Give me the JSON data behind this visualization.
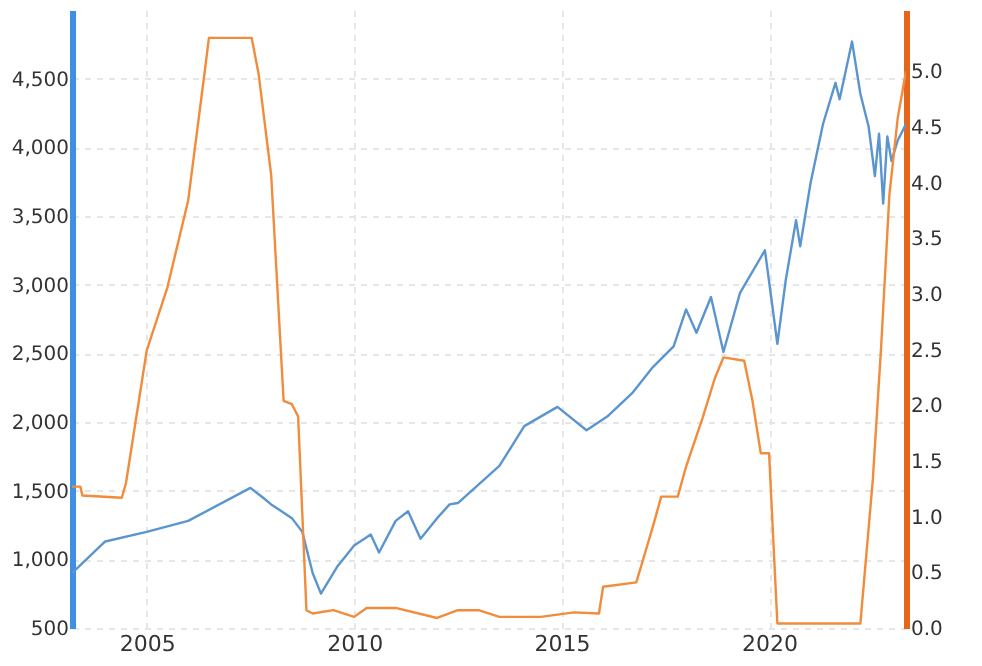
{
  "chart_data": {
    "type": "line",
    "xlim": [
      2003.2,
      2023.3
    ],
    "xticks": [
      2005,
      2010,
      2015,
      2020
    ],
    "ylim": [
      500,
      5000
    ],
    "yticks": [
      500,
      {
        "value": 1000,
        "label": "1,000"
      },
      {
        "value": 1500,
        "label": "1,500"
      },
      {
        "value": 2000,
        "label": "2,000"
      },
      {
        "value": 2500,
        "label": "2,500"
      },
      {
        "value": 3000,
        "label": "3,000"
      },
      {
        "value": 3500,
        "label": "3,500"
      },
      {
        "value": 4000,
        "label": "4,000"
      },
      {
        "value": 4500,
        "label": "4,500"
      }
    ],
    "y2lim": [
      0,
      5.55
    ],
    "y2ticks": [
      {
        "value": 0,
        "label": "0.0"
      },
      0.5,
      {
        "value": 1,
        "label": "1.0"
      },
      1.5,
      {
        "value": 2,
        "label": "2.0"
      },
      2.5,
      {
        "value": 3,
        "label": "3.0"
      },
      3.5,
      {
        "value": 4,
        "label": "4.0"
      },
      4.5,
      {
        "value": 5,
        "label": "5.0"
      }
    ],
    "grid": true,
    "line_style": "solid",
    "series": [
      {
        "color": "#5b95cf",
        "x": [
          2003.2,
          2004.0,
          2005.0,
          2006.0,
          2007.5,
          2007.8,
          2008.0,
          2008.5,
          2008.75,
          2009.0,
          2009.2,
          2009.6,
          2010.0,
          2010.4,
          2010.6,
          2011.0,
          2011.3,
          2011.6,
          2012.0,
          2012.3,
          2012.5,
          2013.5,
          2014.1,
          2014.9,
          2015.6,
          2016.1,
          2016.7,
          2017.2,
          2017.7,
          2018.0,
          2018.25,
          2018.6,
          2018.9,
          2019.3,
          2019.9,
          2020.2,
          2020.4,
          2020.65,
          2020.75,
          2021.0,
          2021.3,
          2021.6,
          2021.7,
          2022.0,
          2022.2,
          2022.4,
          2022.55,
          2022.65,
          2022.75,
          2022.85,
          2022.95,
          2023.1,
          2023.3
        ],
        "values": [
          900,
          1130,
          1200,
          1280,
          1520,
          1450,
          1400,
          1300,
          1200,
          900,
          750,
          950,
          1100,
          1180,
          1050,
          1280,
          1350,
          1150,
          1300,
          1400,
          1410,
          1680,
          1970,
          2110,
          1940,
          2040,
          2210,
          2400,
          2550,
          2820,
          2650,
          2910,
          2510,
          2940,
          3250,
          2570,
          3030,
          3470,
          3280,
          3740,
          4170,
          4470,
          4350,
          4770,
          4390,
          4150,
          3790,
          4100,
          3590,
          4080,
          3900,
          4050,
          4170
        ]
      },
      {
        "color": "#f08c3c",
        "axis": "y2",
        "x": [
          2003.2,
          2003.4,
          2003.45,
          2004.4,
          2004.5,
          2005.0,
          2005.5,
          2006.0,
          2006.4,
          2006.5,
          2007.53,
          2007.7,
          2008.0,
          2008.3,
          2008.5,
          2008.65,
          2008.85,
          2009.0,
          2009.5,
          2010.0,
          2010.3,
          2011.0,
          2012.0,
          2012.5,
          2013.0,
          2013.5,
          2014.5,
          2015.3,
          2015.9,
          2016.0,
          2016.8,
          2017.2,
          2017.4,
          2017.8,
          2018.0,
          2018.4,
          2018.7,
          2018.9,
          2019.4,
          2019.6,
          2019.8,
          2020.0,
          2020.2,
          2022.0,
          2022.2,
          2022.5,
          2022.7,
          2022.9,
          2023.1,
          2023.3
        ],
        "values": [
          1.27,
          1.27,
          1.19,
          1.17,
          1.3,
          2.49,
          3.06,
          3.84,
          5.0,
          5.3,
          5.3,
          4.97,
          4.07,
          2.04,
          2.01,
          1.9,
          0.16,
          0.13,
          0.16,
          0.1,
          0.18,
          0.18,
          0.09,
          0.16,
          0.16,
          0.1,
          0.1,
          0.14,
          0.13,
          0.37,
          0.41,
          0.91,
          1.18,
          1.18,
          1.45,
          1.89,
          2.25,
          2.43,
          2.4,
          2.04,
          1.57,
          1.57,
          0.04,
          0.04,
          0.04,
          1.33,
          2.52,
          3.89,
          4.58,
          5.0
        ]
      }
    ]
  }
}
